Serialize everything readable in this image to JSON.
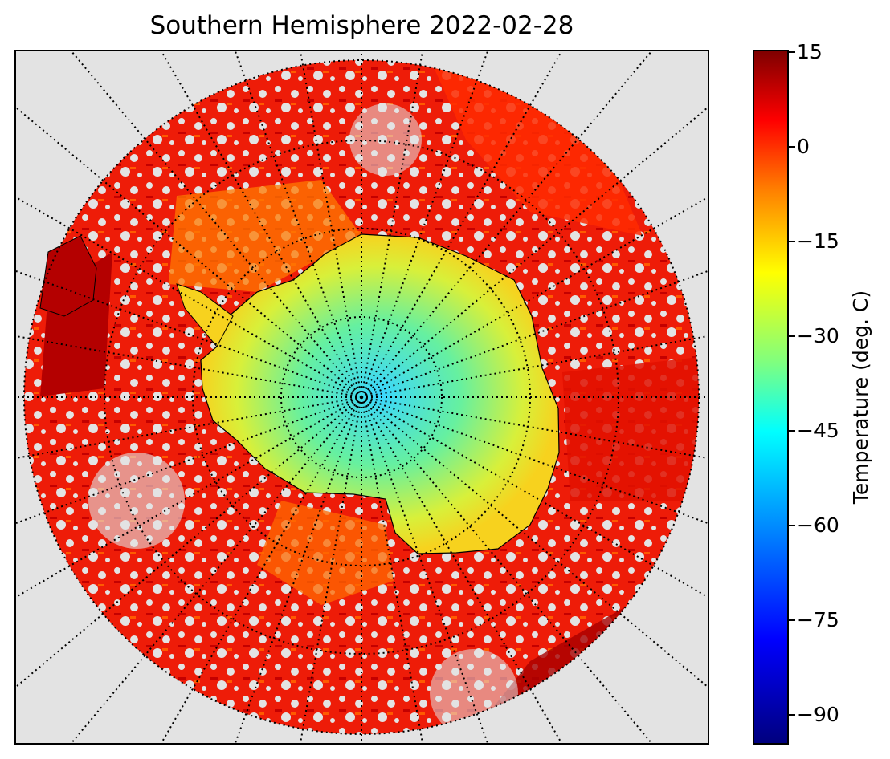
{
  "title": "Southern Hemisphere 2022-02-28",
  "colorbar": {
    "label": "Temperature (deg. C)",
    "min": -95,
    "max": 15,
    "ticks": [
      {
        "value": 15,
        "label": "15"
      },
      {
        "value": 0,
        "label": "0"
      },
      {
        "value": -15,
        "label": "−15"
      },
      {
        "value": -30,
        "label": "−30"
      },
      {
        "value": -45,
        "label": "−45"
      },
      {
        "value": -60,
        "label": "−60"
      },
      {
        "value": -75,
        "label": "−75"
      },
      {
        "value": -90,
        "label": "−90"
      }
    ],
    "colormap": "jet"
  },
  "map": {
    "projection": "south polar stereographic",
    "parallels_visible": true,
    "meridians_visible": true,
    "meridian_step_deg": 10,
    "background_color": "#e3e3e3",
    "gridline_color": "#000000"
  }
}
